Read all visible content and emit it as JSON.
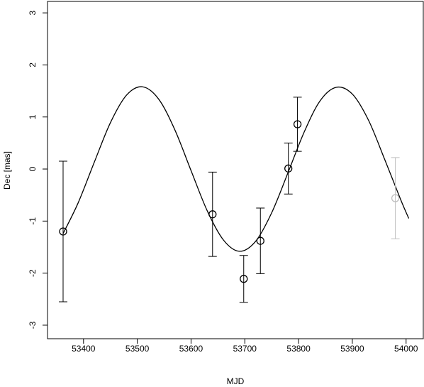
{
  "chart_data": {
    "type": "scatter",
    "xlabel": "MJD",
    "ylabel": "Dec [mas]",
    "xlim": [
      53333,
      54032
    ],
    "ylim": [
      -3.26,
      3.22
    ],
    "xticks": [
      53400,
      53500,
      53600,
      53700,
      53800,
      53900,
      54000
    ],
    "yticks": [
      -3,
      -2,
      -1,
      0,
      1,
      2,
      3
    ],
    "series": [
      {
        "color": "#000000",
        "x": [
          53362,
          53640,
          53698,
          53729,
          53781,
          53798
        ],
        "values": [
          -1.2,
          -0.87,
          -2.11,
          -1.38,
          0.01,
          0.86
        ],
        "errors": [
          1.35,
          0.81,
          0.45,
          0.63,
          0.49,
          0.52
        ]
      },
      {
        "color": "#bfbfbf",
        "x": [
          53980
        ],
        "values": [
          -0.56
        ],
        "errors": [
          0.78
        ]
      }
    ],
    "fit": {
      "color": "#000000",
      "x": [
        53362,
        53390,
        53420,
        53450,
        53480,
        53510,
        53540,
        53570,
        53600,
        53630,
        53660,
        53690,
        53720,
        53750,
        53780,
        53810,
        53840,
        53870,
        53900,
        53930,
        53960,
        53990,
        54005
      ],
      "values": [
        -1.24,
        -0.65,
        0.13,
        0.89,
        1.42,
        1.58,
        1.34,
        0.75,
        -0.03,
        -0.8,
        -1.36,
        -1.58,
        -1.39,
        -0.84,
        -0.08,
        0.7,
        1.31,
        1.57,
        1.44,
        0.94,
        0.19,
        -0.59,
        -0.95
      ]
    }
  }
}
